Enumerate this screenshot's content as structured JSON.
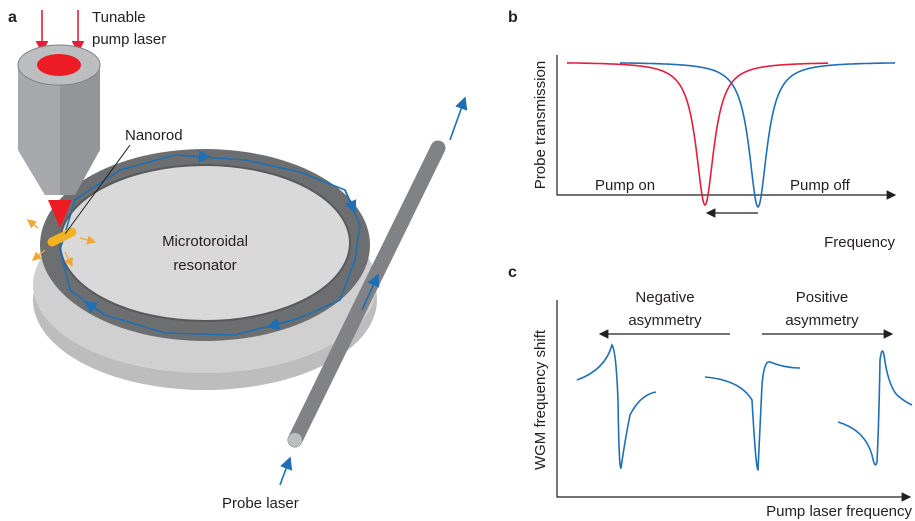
{
  "panel_a": {
    "label": "a",
    "pump_laser": [
      "Tunable",
      "pump laser"
    ],
    "nanorod": "Nanorod",
    "resonator": [
      "Microtoroidal",
      "resonator"
    ],
    "probe_laser": "Probe laser"
  },
  "panel_b": {
    "label": "b",
    "y_label": "Probe transmission",
    "x_label": "Frequency",
    "pump_on": "Pump on",
    "pump_off": "Pump off"
  },
  "panel_c": {
    "label": "c",
    "y_label": "WGM frequency shift",
    "x_label": "Pump laser frequency",
    "negative": [
      "Negative",
      "asymmetry"
    ],
    "positive": [
      "Positive",
      "asymmetry"
    ]
  }
}
